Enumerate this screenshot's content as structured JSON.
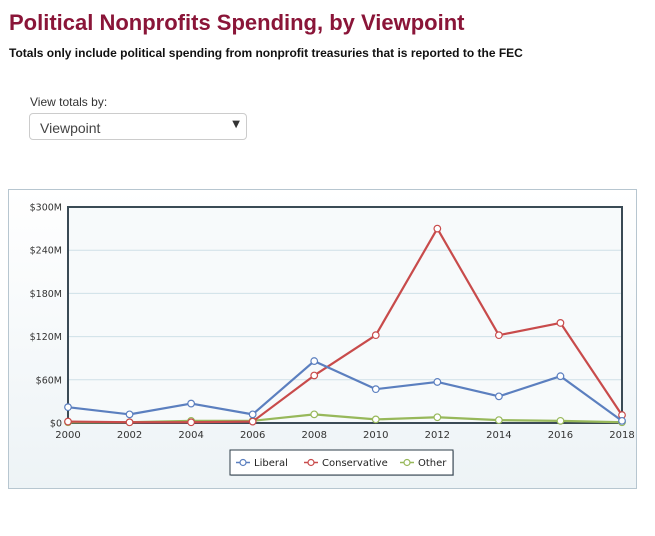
{
  "page": {
    "title": "Political Nonprofits Spending, by Viewpoint",
    "subtitle": "Totals only include political spending from nonprofit treasuries that is reported to the FEC"
  },
  "controls": {
    "view_label": "View totals by:",
    "selected": "Viewpoint",
    "caret": "▼"
  },
  "chart_data": {
    "type": "line",
    "title": "",
    "xlabel": "",
    "ylabel": "",
    "x": [
      2000,
      2002,
      2004,
      2006,
      2008,
      2010,
      2012,
      2014,
      2016,
      2018
    ],
    "ylim": [
      0,
      300
    ],
    "yticks": [
      0,
      60,
      120,
      180,
      240,
      300
    ],
    "ytick_labels": [
      "$0",
      "$60M",
      "$120M",
      "$180M",
      "$240M",
      "$300M"
    ],
    "xtick_labels": [
      "2000",
      "2002",
      "2004",
      "2006",
      "2008",
      "2010",
      "2012",
      "2014",
      "2016",
      "2018"
    ],
    "unit": "millions USD",
    "series": [
      {
        "name": "Liberal",
        "color": "#5b7fbf",
        "values": [
          22,
          12,
          27,
          12,
          86,
          47,
          57,
          37,
          65,
          3
        ]
      },
      {
        "name": "Conservative",
        "color": "#c84b4b",
        "values": [
          2,
          1,
          1,
          2,
          66,
          122,
          270,
          122,
          139,
          11
        ]
      },
      {
        "name": "Other",
        "color": "#97b85a",
        "values": [
          1,
          1,
          3,
          3,
          12,
          5,
          8,
          4,
          3,
          1
        ]
      }
    ],
    "legend_position": "bottom-center",
    "grid": true
  }
}
